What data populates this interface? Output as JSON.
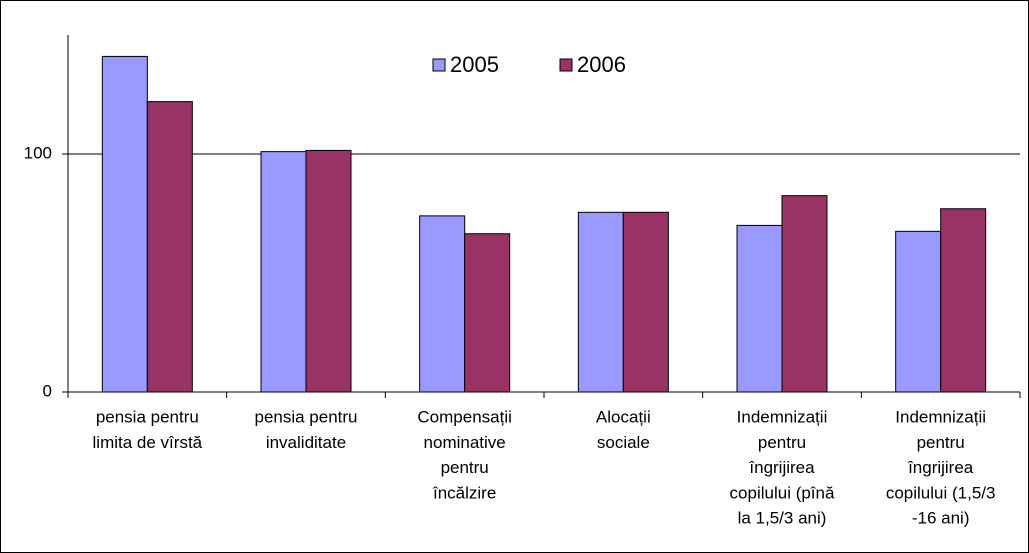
{
  "chart_data": {
    "type": "bar",
    "categories": [
      [
        "pensia pentru",
        "limita de vîrstă"
      ],
      [
        "pensia pentru",
        "invaliditate"
      ],
      [
        "Compensații",
        "nominative",
        "pentru",
        "încălzire"
      ],
      [
        "Alocații",
        "sociale"
      ],
      [
        "Indemnizații",
        "pentru",
        "îngrijirea",
        "copilului (pînă",
        "la 1,5/3 ani)"
      ],
      [
        "Indemnizații",
        "pentru",
        "îngrijirea",
        "copilului (1,5/3",
        "-16 ani)"
      ]
    ],
    "series": [
      {
        "name": "2005",
        "color": "#9999ff",
        "values": [
          141,
          101,
          74,
          75.5,
          70,
          67.5
        ]
      },
      {
        "name": "2006",
        "color": "#993366",
        "values": [
          122,
          101.5,
          66.5,
          75.5,
          82.5,
          77
        ]
      }
    ],
    "ylim": [
      0,
      150
    ],
    "yticks": [
      0,
      100
    ],
    "grid": true,
    "legend": "top"
  }
}
